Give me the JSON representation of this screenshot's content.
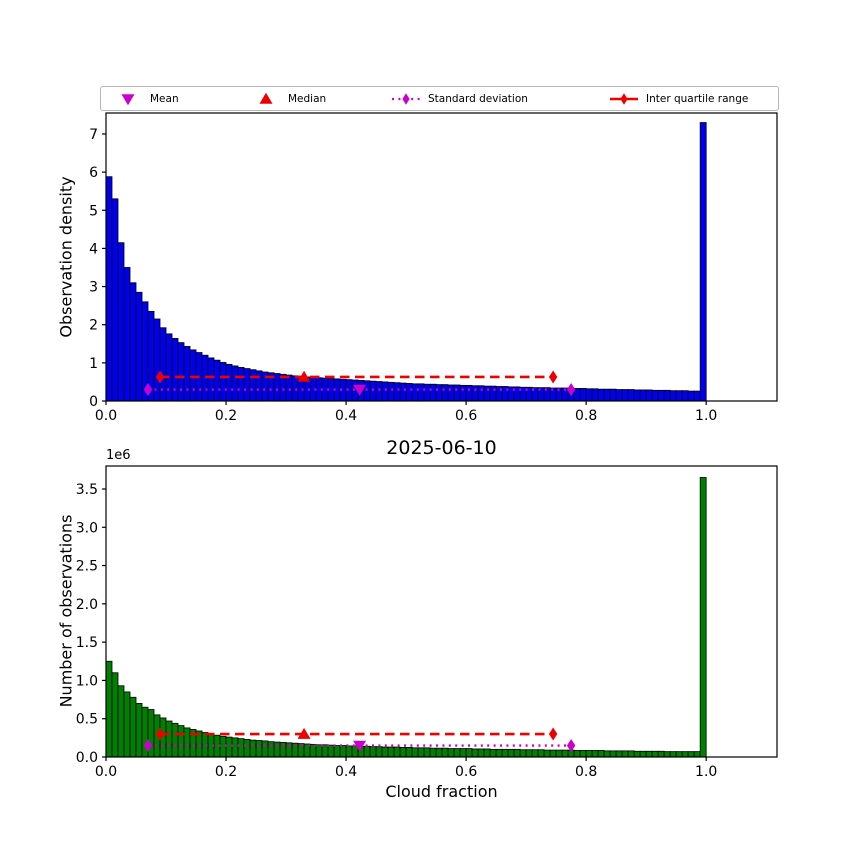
{
  "legend": {
    "items": [
      {
        "label": "Mean",
        "marker": "triangle-down",
        "color": "#cc00cc"
      },
      {
        "label": "Median",
        "marker": "triangle-up",
        "color": "#ee0000"
      },
      {
        "label": "Standard deviation",
        "marker": "diamond-dotted-line",
        "color": "#cc00cc"
      },
      {
        "label": "Inter quartile range",
        "marker": "diamond-solid-line",
        "color": "#ee0000"
      }
    ]
  },
  "colors": {
    "blue_bars": "#0000f0",
    "green_bars": "#008000",
    "red": "#ee0000",
    "magenta": "#cc00cc",
    "bar_edge": "#000000",
    "axis": "#000000"
  },
  "chart_data": [
    {
      "type": "bar",
      "ylabel": "Observation density",
      "bar_color": "#0000f0",
      "bin_edges": {
        "start": 0.0,
        "end": 1.0,
        "step": 0.01
      },
      "xlim": [
        0,
        1.118
      ],
      "ylim": [
        0,
        7.55
      ],
      "xtick_values": [
        0.0,
        0.2,
        0.4,
        0.6,
        0.8,
        1.0
      ],
      "xtick_labels": [
        "0.0",
        "0.2",
        "0.4",
        "0.6",
        "0.8",
        "1.0"
      ],
      "ytick_values": [
        0,
        1,
        2,
        3,
        4,
        5,
        6,
        7
      ],
      "ytick_labels": [
        "0",
        "1",
        "2",
        "3",
        "4",
        "5",
        "6",
        "7"
      ],
      "values": [
        5.88,
        5.3,
        4.15,
        3.5,
        3.1,
        2.85,
        2.6,
        2.35,
        2.15,
        1.92,
        1.76,
        1.64,
        1.53,
        1.43,
        1.34,
        1.27,
        1.2,
        1.13,
        1.07,
        1.01,
        0.96,
        0.92,
        0.88,
        0.85,
        0.82,
        0.79,
        0.76,
        0.74,
        0.72,
        0.7,
        0.68,
        0.66,
        0.65,
        0.63,
        0.62,
        0.61,
        0.6,
        0.59,
        0.58,
        0.57,
        0.56,
        0.55,
        0.54,
        0.53,
        0.52,
        0.51,
        0.5,
        0.49,
        0.48,
        0.47,
        0.46,
        0.45,
        0.45,
        0.44,
        0.44,
        0.43,
        0.43,
        0.42,
        0.42,
        0.41,
        0.41,
        0.4,
        0.4,
        0.39,
        0.39,
        0.38,
        0.38,
        0.37,
        0.37,
        0.36,
        0.36,
        0.35,
        0.35,
        0.35,
        0.34,
        0.34,
        0.34,
        0.33,
        0.33,
        0.33,
        0.32,
        0.32,
        0.31,
        0.31,
        0.31,
        0.3,
        0.3,
        0.3,
        0.29,
        0.29,
        0.29,
        0.28,
        0.28,
        0.28,
        0.27,
        0.27,
        0.27,
        0.26,
        0.26,
        7.3
      ],
      "stats": {
        "mean": 0.4225,
        "std": 0.3525,
        "median": 0.33,
        "q1": 0.09,
        "q3": 0.745,
        "std_line_y": 0.3,
        "iqr_line_y": 0.63
      }
    },
    {
      "type": "bar",
      "title": "2025-06-10",
      "ylabel": "Number of observations",
      "xlabel": "Cloud fraction",
      "offset_text": "1e6",
      "value_scale": "1e6",
      "bar_color": "#008000",
      "bin_edges": {
        "start": 0.0,
        "end": 1.0,
        "step": 0.01
      },
      "xlim": [
        0,
        1.118
      ],
      "ylim": [
        0,
        3.8
      ],
      "xtick_values": [
        0.0,
        0.2,
        0.4,
        0.6,
        0.8,
        1.0
      ],
      "xtick_labels": [
        "0.0",
        "0.2",
        "0.4",
        "0.6",
        "0.8",
        "1.0"
      ],
      "ytick_values": [
        0.0,
        0.5,
        1.0,
        1.5,
        2.0,
        2.5,
        3.0,
        3.5
      ],
      "ytick_labels": [
        "0.0",
        "0.5",
        "1.0",
        "1.5",
        "2.0",
        "2.5",
        "3.0",
        "3.5"
      ],
      "values": [
        1.25,
        1.1,
        0.93,
        0.85,
        0.78,
        0.7,
        0.65,
        0.62,
        0.55,
        0.51,
        0.47,
        0.44,
        0.41,
        0.38,
        0.36,
        0.34,
        0.32,
        0.3,
        0.285,
        0.27,
        0.26,
        0.25,
        0.24,
        0.23,
        0.22,
        0.215,
        0.21,
        0.2,
        0.195,
        0.19,
        0.185,
        0.18,
        0.175,
        0.17,
        0.165,
        0.16,
        0.16,
        0.155,
        0.15,
        0.15,
        0.145,
        0.145,
        0.14,
        0.14,
        0.135,
        0.135,
        0.13,
        0.13,
        0.13,
        0.125,
        0.125,
        0.12,
        0.12,
        0.12,
        0.115,
        0.115,
        0.115,
        0.11,
        0.11,
        0.11,
        0.11,
        0.105,
        0.105,
        0.105,
        0.1,
        0.1,
        0.1,
        0.1,
        0.1,
        0.095,
        0.095,
        0.095,
        0.095,
        0.09,
        0.09,
        0.09,
        0.09,
        0.09,
        0.085,
        0.085,
        0.085,
        0.085,
        0.085,
        0.08,
        0.08,
        0.08,
        0.08,
        0.08,
        0.075,
        0.075,
        0.075,
        0.075,
        0.075,
        0.07,
        0.07,
        0.07,
        0.07,
        0.07,
        0.07,
        3.65
      ],
      "stats": {
        "mean": 0.4225,
        "std": 0.3525,
        "median": 0.33,
        "q1": 0.09,
        "q3": 0.745,
        "std_line_y": 0.15,
        "iqr_line_y": 0.3
      }
    }
  ]
}
